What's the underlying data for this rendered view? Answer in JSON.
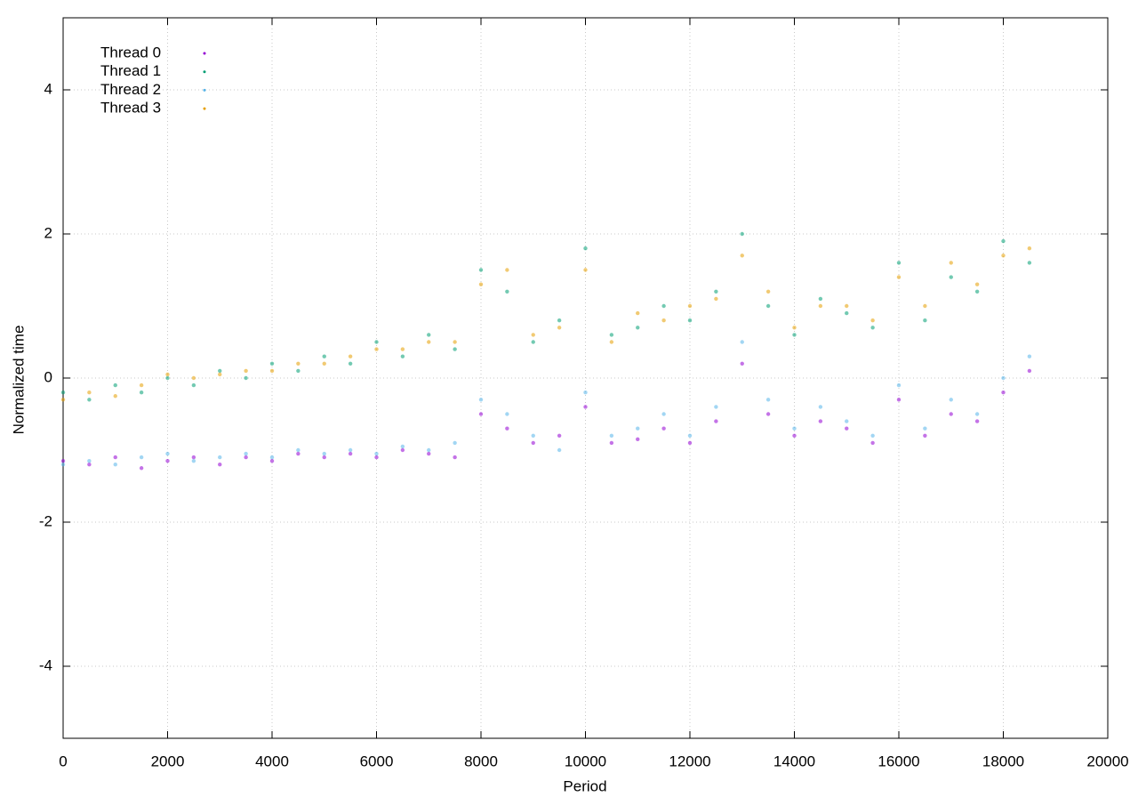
{
  "chart_data": {
    "type": "scatter",
    "xlabel": "Period",
    "ylabel": "Normalized time",
    "xlim": [
      0,
      20000
    ],
    "ylim": [
      -5,
      5
    ],
    "xticks": [
      0,
      2000,
      4000,
      6000,
      8000,
      10000,
      12000,
      14000,
      16000,
      18000,
      20000
    ],
    "yticks": [
      -4,
      -2,
      0,
      2,
      4
    ],
    "grid": true,
    "legend": "top-left",
    "series": [
      {
        "name": "Thread 0",
        "color": "#9400d3",
        "x": [
          0,
          500,
          1000,
          1500,
          2000,
          2500,
          3000,
          3500,
          4000,
          4500,
          5000,
          5500,
          6000,
          6500,
          7000,
          7500,
          8000,
          8500,
          9000,
          9500,
          10000,
          10500,
          11000,
          11500,
          12000,
          12500,
          13000,
          13500,
          14000,
          14500,
          15000,
          15500,
          16000,
          16500,
          17000,
          17500,
          18000,
          18500
        ],
        "values": [
          -1.15,
          -1.2,
          -1.1,
          -1.25,
          -1.15,
          -1.1,
          -1.2,
          -1.1,
          -1.15,
          -1.05,
          -1.1,
          -1.05,
          -1.1,
          -1.0,
          -1.05,
          -1.1,
          -0.5,
          -0.7,
          -0.9,
          -0.8,
          -0.4,
          -0.9,
          -0.85,
          -0.7,
          -0.9,
          -0.6,
          0.2,
          -0.5,
          -0.8,
          -0.6,
          -0.7,
          -0.9,
          -0.3,
          -0.8,
          -0.5,
          -0.6,
          -0.2,
          0.1
        ]
      },
      {
        "name": "Thread 1",
        "color": "#009e73",
        "x": [
          0,
          500,
          1000,
          1500,
          2000,
          2500,
          3000,
          3500,
          4000,
          4500,
          5000,
          5500,
          6000,
          6500,
          7000,
          7500,
          8000,
          8500,
          9000,
          9500,
          10000,
          10500,
          11000,
          11500,
          12000,
          12500,
          13000,
          13500,
          14000,
          14500,
          15000,
          15500,
          16000,
          16500,
          17000,
          17500,
          18000,
          18500
        ],
        "values": [
          -0.2,
          -0.3,
          -0.1,
          -0.2,
          0.0,
          -0.1,
          0.1,
          0.0,
          0.2,
          0.1,
          0.3,
          0.2,
          0.5,
          0.3,
          0.6,
          0.4,
          1.5,
          1.2,
          0.5,
          0.8,
          1.8,
          0.6,
          0.7,
          1.0,
          0.8,
          1.2,
          2.0,
          1.0,
          0.6,
          1.1,
          0.9,
          0.7,
          1.6,
          0.8,
          1.4,
          1.2,
          1.9,
          1.6
        ]
      },
      {
        "name": "Thread 2",
        "color": "#56b4e9",
        "x": [
          0,
          500,
          1000,
          1500,
          2000,
          2500,
          3000,
          3500,
          4000,
          4500,
          5000,
          5500,
          6000,
          6500,
          7000,
          7500,
          8000,
          8500,
          9000,
          9500,
          10000,
          10500,
          11000,
          11500,
          12000,
          12500,
          13000,
          13500,
          14000,
          14500,
          15000,
          15500,
          16000,
          16500,
          17000,
          17500,
          18000,
          18500
        ],
        "values": [
          -1.2,
          -1.15,
          -1.2,
          -1.1,
          -1.05,
          -1.15,
          -1.1,
          -1.05,
          -1.1,
          -1.0,
          -1.05,
          -1.0,
          -1.05,
          -0.95,
          -1.0,
          -0.9,
          -0.3,
          -0.5,
          -0.8,
          -1.0,
          -0.2,
          -0.8,
          -0.7,
          -0.5,
          -0.8,
          -0.4,
          0.5,
          -0.3,
          -0.7,
          -0.4,
          -0.6,
          -0.8,
          -0.1,
          -0.7,
          -0.3,
          -0.5,
          0.0,
          0.3
        ]
      },
      {
        "name": "Thread 3",
        "color": "#e69f00",
        "x": [
          0,
          500,
          1000,
          1500,
          2000,
          2500,
          3000,
          3500,
          4000,
          4500,
          5000,
          5500,
          6000,
          6500,
          7000,
          7500,
          8000,
          8500,
          9000,
          9500,
          10000,
          10500,
          11000,
          11500,
          12000,
          12500,
          13000,
          13500,
          14000,
          14500,
          15000,
          15500,
          16000,
          16500,
          17000,
          17500,
          18000,
          18500
        ],
        "values": [
          -0.3,
          -0.2,
          -0.25,
          -0.1,
          0.05,
          0.0,
          0.05,
          0.1,
          0.1,
          0.2,
          0.2,
          0.3,
          0.4,
          0.4,
          0.5,
          0.5,
          1.3,
          1.5,
          0.6,
          0.7,
          1.5,
          0.5,
          0.9,
          0.8,
          1.0,
          1.1,
          1.7,
          1.2,
          0.7,
          1.0,
          1.0,
          0.8,
          1.4,
          1.0,
          1.6,
          1.3,
          1.7,
          1.8
        ]
      }
    ]
  }
}
